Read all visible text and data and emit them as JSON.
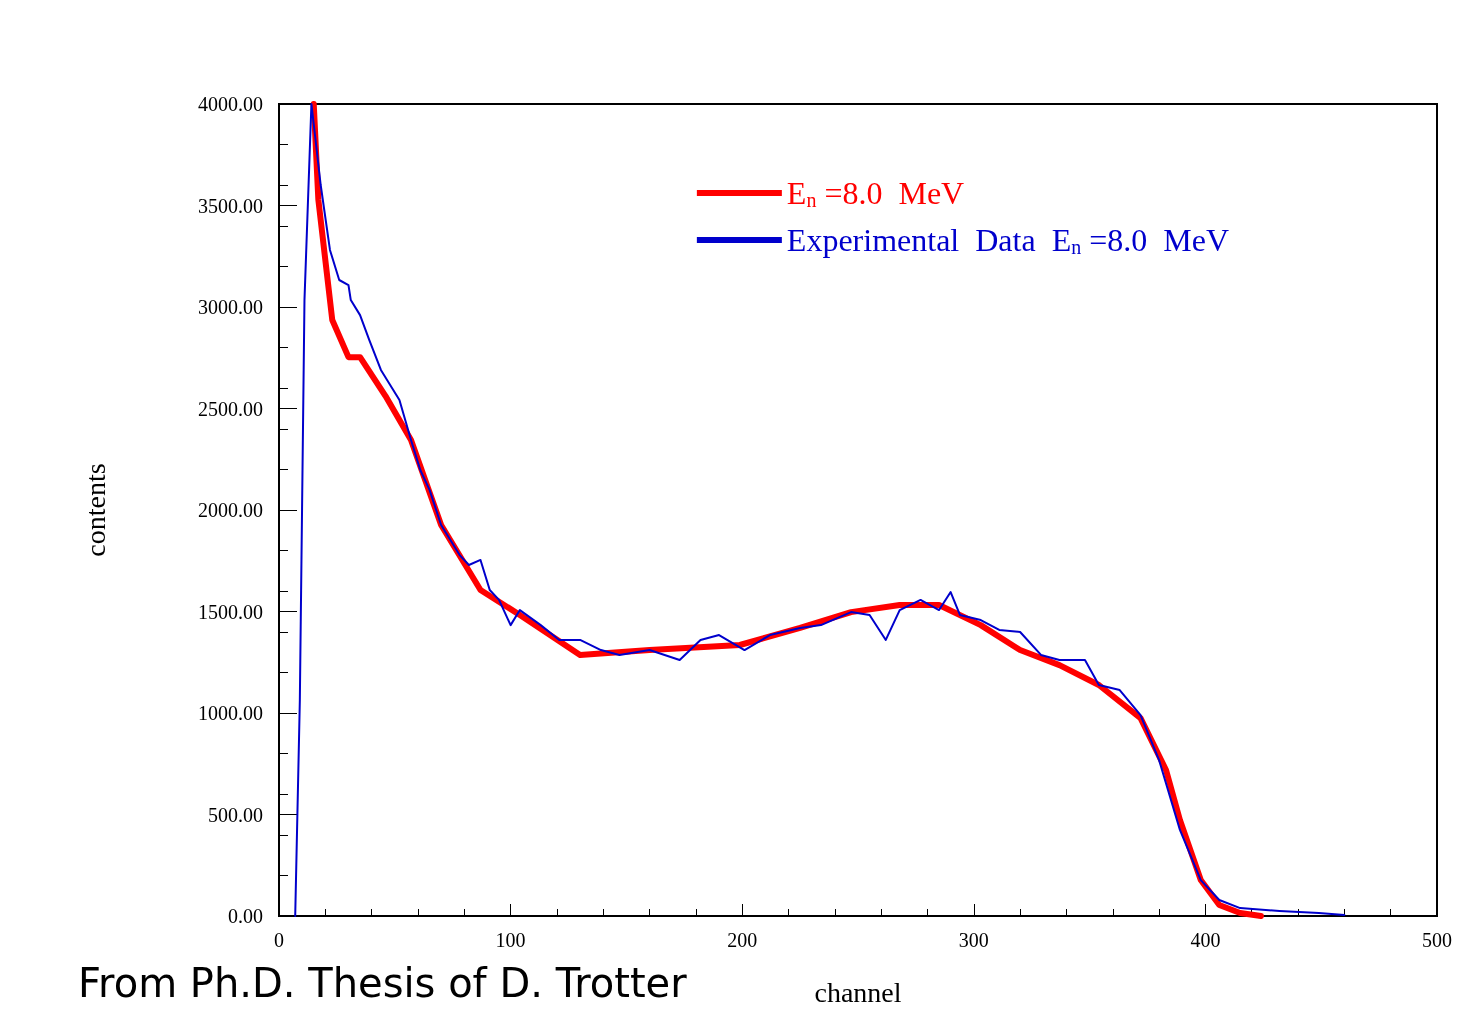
{
  "chart_data": {
    "type": "line",
    "xlabel": "channel",
    "ylabel": "contents",
    "annotations": [
      "From Ph.D. Thesis of D. Trotter"
    ],
    "xlim": [
      0,
      500
    ],
    "xticks": [
      0,
      100,
      200,
      300,
      400,
      500
    ],
    "ylim": [
      0,
      4000
    ],
    "yticks": [
      {
        "value": 0,
        "label": "0.00"
      },
      {
        "value": 500,
        "label": "500.00"
      },
      {
        "value": 1000,
        "label": "1000.00"
      },
      {
        "value": 1500,
        "label": "1500.00"
      },
      {
        "value": 2000,
        "label": "2000.00"
      },
      {
        "value": 2500,
        "label": "2500.00"
      },
      {
        "value": 3000,
        "label": "3000.00"
      },
      {
        "value": 3500,
        "label": "3500.00"
      },
      {
        "value": 4000,
        "label": "4000.00"
      }
    ],
    "grid": false,
    "legend": "top right",
    "marker": "none",
    "line_style": "solid",
    "series": [
      {
        "name": "E$_{n}$ =8.0  MeV",
        "color": "#ff0000",
        "x": [
          15,
          17,
          23,
          30,
          35,
          46,
          57,
          70,
          87,
          104,
          130,
          160,
          199,
          225,
          247,
          268,
          285,
          303,
          320,
          337,
          354,
          372,
          383,
          389,
          398,
          406,
          415,
          424
        ],
        "values": [
          4000,
          3527,
          2936,
          2753,
          2753,
          2561,
          2345,
          1926,
          1606,
          1483,
          1286,
          1310,
          1335,
          1419,
          1497,
          1532,
          1532,
          1433,
          1310,
          1236,
          1138,
          975,
          719,
          473,
          177,
          54,
          15,
          0
        ]
      },
      {
        "name": "Experimental  Data  E$_{n}$ =8.0  MeV",
        "color": "#0000cc",
        "x": [
          7,
          9,
          11,
          14,
          18,
          22,
          26,
          30,
          31,
          35,
          39,
          44,
          48,
          52,
          57,
          61,
          65,
          70,
          74,
          78,
          82,
          87,
          91,
          95,
          100,
          104,
          113,
          121,
          130,
          139,
          147,
          160,
          173,
          182,
          190,
          201,
          212,
          225,
          234,
          247,
          255,
          262,
          268,
          277,
          285,
          290,
          294,
          303,
          311,
          320,
          329,
          337,
          348,
          354,
          363,
          372,
          380,
          389,
          398,
          406,
          415,
          432,
          449,
          460
        ],
        "values": [
          0,
          1064,
          3034,
          4000,
          3601,
          3281,
          3133,
          3108,
          3034,
          2960,
          2837,
          2690,
          2616,
          2542,
          2345,
          2197,
          2099,
          1926,
          1852,
          1778,
          1729,
          1754,
          1606,
          1557,
          1433,
          1507,
          1433,
          1360,
          1360,
          1310,
          1286,
          1310,
          1261,
          1360,
          1384,
          1310,
          1384,
          1419,
          1433,
          1497,
          1483,
          1360,
          1507,
          1557,
          1507,
          1596,
          1483,
          1458,
          1409,
          1399,
          1286,
          1261,
          1261,
          1138,
          1113,
          990,
          768,
          424,
          177,
          79,
          39,
          25,
          15,
          5
        ]
      }
    ]
  }
}
